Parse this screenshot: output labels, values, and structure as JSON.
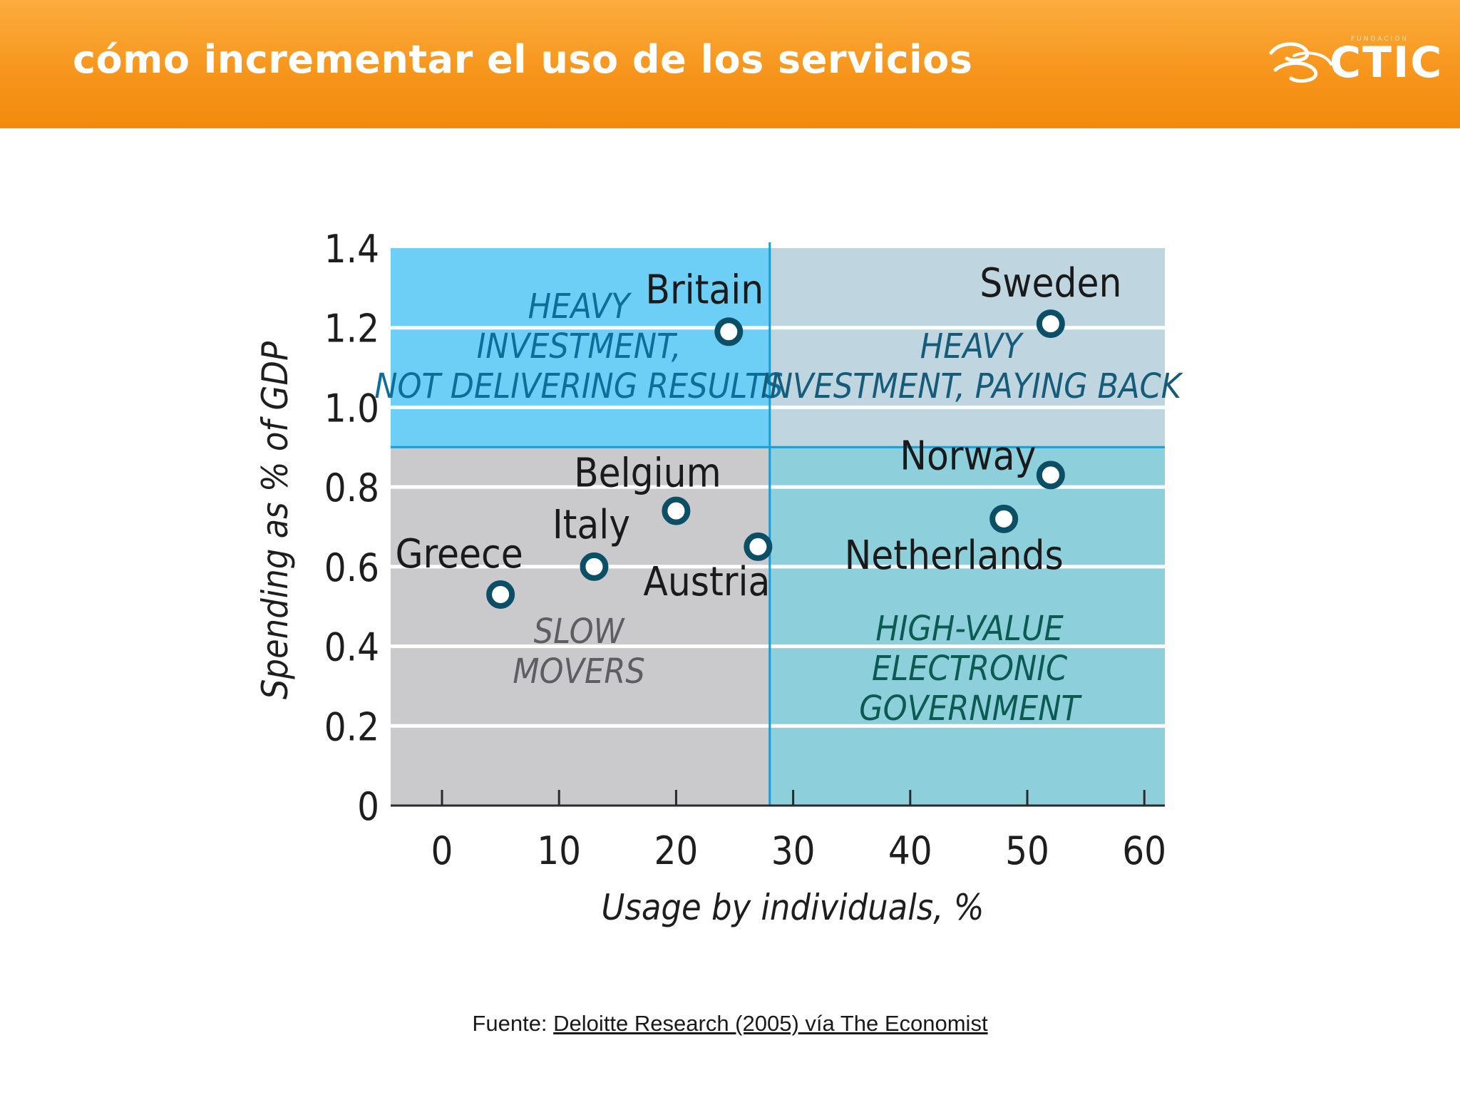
{
  "header": {
    "title": "cómo incrementar el uso de los servicios",
    "logo_text": "CTIC",
    "logo_subtext": "FUNDACIÓN"
  },
  "chart_data": {
    "type": "scatter",
    "xlabel": "Usage by individuals, %",
    "ylabel": "Spending as % of GDP",
    "xlim": [
      0,
      60
    ],
    "ylim": [
      0,
      1.4
    ],
    "x_ticks": [
      "0",
      "10",
      "20",
      "30",
      "40",
      "50",
      "60"
    ],
    "y_ticks": [
      "0",
      "0.2",
      "0.4",
      "0.6",
      "0.8",
      "1.0",
      "1.2",
      "1.4"
    ],
    "grid": "horizontal",
    "quadrant_dividers": {
      "x": 28,
      "y": 0.9
    },
    "quadrants": [
      {
        "label": [
          "HEAVY",
          "INVESTMENT,",
          "NOT DELIVERING RESULTS"
        ],
        "fill": "#6dcff6",
        "text_color": "#0e6e9b"
      },
      {
        "label": [
          "HEAVY",
          "INVESTMENT, PAYING BACK"
        ],
        "fill": "#bfd5e0",
        "text_color": "#155c7a"
      },
      {
        "label": [
          "SLOW",
          "MOVERS"
        ],
        "fill": "#cacacc",
        "text_color": "#5e5e62"
      },
      {
        "label": [
          "HIGH-VALUE",
          "ELECTRONIC",
          "GOVERNMENT"
        ],
        "fill": "#8ecfdc",
        "text_color": "#0b5b52"
      }
    ],
    "points": [
      {
        "name": "Greece",
        "x": 5,
        "y": 0.53
      },
      {
        "name": "Italy",
        "x": 13,
        "y": 0.6
      },
      {
        "name": "Belgium",
        "x": 20,
        "y": 0.74
      },
      {
        "name": "Austria",
        "x": 27,
        "y": 0.65
      },
      {
        "name": "Britain",
        "x": 24.5,
        "y": 1.19
      },
      {
        "name": "Sweden",
        "x": 52,
        "y": 1.21
      },
      {
        "name": "Norway",
        "x": 52,
        "y": 0.83
      },
      {
        "name": "Netherlands",
        "x": 48,
        "y": 0.72
      }
    ],
    "colors": {
      "marker": "#0b4f66",
      "divider": "#1b9bd1",
      "axis": "#2a2a2a"
    }
  },
  "source": {
    "prefix": "Fuente: ",
    "link": "Deloitte Research (2005) vía The Economist"
  }
}
